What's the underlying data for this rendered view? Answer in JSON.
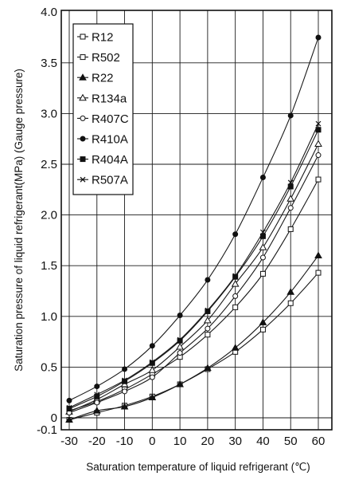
{
  "chart_data": {
    "type": "line",
    "title": "",
    "xlabel": "Saturation temperature of liquid refrigerant (℃)",
    "ylabel": "Saturation pressure of liquid refrigerant(MPa) (Gauge pressure)",
    "xlim": [
      -35,
      65
    ],
    "ylim": [
      -0.1,
      4.0
    ],
    "x": [
      -30,
      -20,
      -10,
      0,
      10,
      20,
      30,
      40,
      50,
      60
    ],
    "xticks": [
      -30,
      -20,
      -10,
      0,
      10,
      20,
      30,
      40,
      50,
      60
    ],
    "xtick_labels": [
      "-30",
      "-20",
      "-10",
      "0",
      "10",
      "20",
      "30",
      "40",
      "50",
      "60"
    ],
    "yticks": [
      -0.1,
      0,
      0.5,
      1.0,
      1.5,
      2.0,
      2.5,
      3.0,
      3.5,
      4.0
    ],
    "ytick_labels": [
      "-0.1",
      "0",
      "0.5",
      "1.0",
      "1.5",
      "2.0",
      "2.5",
      "3.0",
      "3.5",
      "4.0"
    ],
    "grid": true,
    "legend_position": "top-left",
    "series": [
      {
        "name": "R12",
        "marker": "square-open",
        "values": [
          -0.02,
          0.05,
          0.12,
          0.21,
          0.33,
          0.48,
          0.65,
          0.87,
          1.13,
          1.43
        ]
      },
      {
        "name": "R502",
        "marker": "square-open",
        "values": [
          0.07,
          0.16,
          0.28,
          0.43,
          0.6,
          0.82,
          1.09,
          1.42,
          1.86,
          2.35
        ]
      },
      {
        "name": "R22",
        "marker": "triangle-filled",
        "values": [
          -0.02,
          0.07,
          0.11,
          0.2,
          0.33,
          0.49,
          0.69,
          0.94,
          1.24,
          1.6
        ]
      },
      {
        "name": "R134a",
        "marker": "triangle-open",
        "values": [
          0.06,
          0.18,
          0.33,
          0.47,
          0.7,
          0.96,
          1.32,
          1.68,
          2.16,
          2.7
        ]
      },
      {
        "name": "R407C",
        "marker": "circle-open",
        "values": [
          0.05,
          0.15,
          0.26,
          0.4,
          0.64,
          0.88,
          1.2,
          1.58,
          2.07,
          2.59
        ]
      },
      {
        "name": "R410A",
        "marker": "circle-filled",
        "values": [
          0.17,
          0.31,
          0.48,
          0.71,
          1.01,
          1.36,
          1.81,
          2.37,
          2.98,
          3.75
        ]
      },
      {
        "name": "R404A",
        "marker": "square-filled",
        "values": [
          0.09,
          0.21,
          0.36,
          0.54,
          0.76,
          1.05,
          1.39,
          1.79,
          2.28,
          2.84
        ]
      },
      {
        "name": "R507A",
        "marker": "cross",
        "values": [
          0.1,
          0.23,
          0.37,
          0.55,
          0.77,
          1.06,
          1.4,
          1.83,
          2.32,
          2.9
        ]
      }
    ]
  }
}
